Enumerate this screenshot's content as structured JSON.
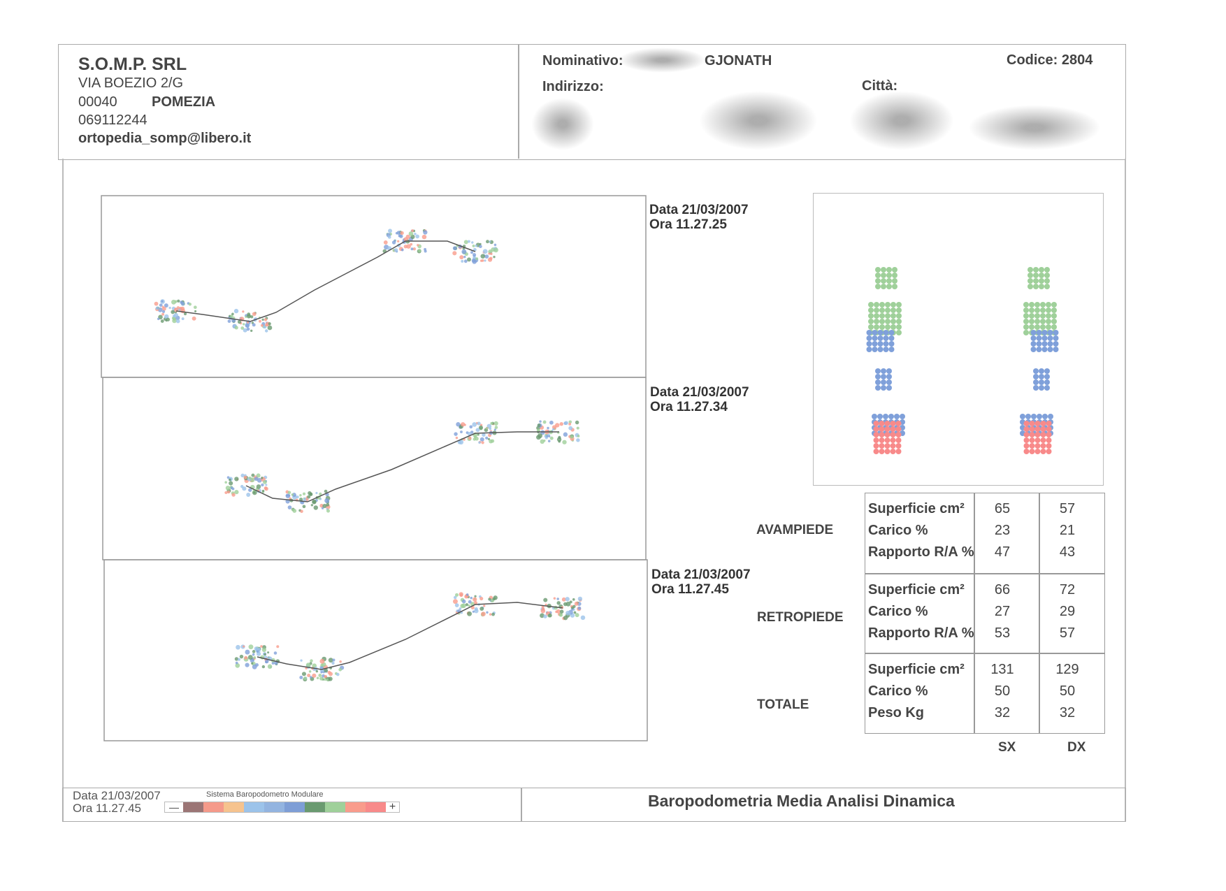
{
  "company": {
    "name": "S.O.M.P. SRL",
    "address": "VIA BOEZIO  2/G",
    "cap": "00040",
    "city": "POMEZIA",
    "phone": "069112244",
    "email": "ortopedia_somp@libero.it"
  },
  "patient": {
    "nominativo_label": "Nominativo:",
    "nominativo_value": "GJONATH",
    "codice": "Codice: 2804",
    "indirizzo_label": "Indirizzo:",
    "citta_label": "Città:"
  },
  "traces": [
    {
      "date": "Data 21/03/2007",
      "time": "Ora 11.27.25"
    },
    {
      "date": "Data 21/03/2007",
      "time": "Ora 11.27.34"
    },
    {
      "date": "Data 21/03/2007",
      "time": "Ora 11.27.45"
    }
  ],
  "table": {
    "groups": [
      {
        "name": "AVAMPIEDE",
        "rows": [
          {
            "label": "Superficie cm²",
            "sx": "65",
            "dx": "57"
          },
          {
            "label": "Carico      %",
            "sx": "23",
            "dx": "21"
          },
          {
            "label": "Rapporto R/A %",
            "sx": "47",
            "dx": "43"
          }
        ]
      },
      {
        "name": "RETROPIEDE",
        "rows": [
          {
            "label": "Superficie cm²",
            "sx": "66",
            "dx": "72"
          },
          {
            "label": "Carico      %",
            "sx": "27",
            "dx": "29"
          },
          {
            "label": "Rapporto R/A %",
            "sx": "53",
            "dx": "57"
          }
        ]
      },
      {
        "name": "TOTALE",
        "rows": [
          {
            "label": "Superficie cm²",
            "sx": "131",
            "dx": "129"
          },
          {
            "label": "Carico      %",
            "sx": "50",
            "dx": "50"
          },
          {
            "label": "Peso        Kg",
            "sx": "32",
            "dx": "32"
          }
        ]
      }
    ],
    "sx": "SX",
    "dx": "DX"
  },
  "footer": {
    "date": "Data 21/03/2007",
    "time": "Ora 11.27.45",
    "system": "Sistema Baropodometro Modulare",
    "minus": "—",
    "plus": "+",
    "title": "Baropodometria Media Analisi Dinamica"
  },
  "scale_colors": [
    "#9b7575",
    "#f59a8a",
    "#f6c38e",
    "#9cc3ea",
    "#93b4e0",
    "#7e9ed6",
    "#6a9a70",
    "#9fd09a",
    "#f99c8c",
    "#f88a8a"
  ]
}
